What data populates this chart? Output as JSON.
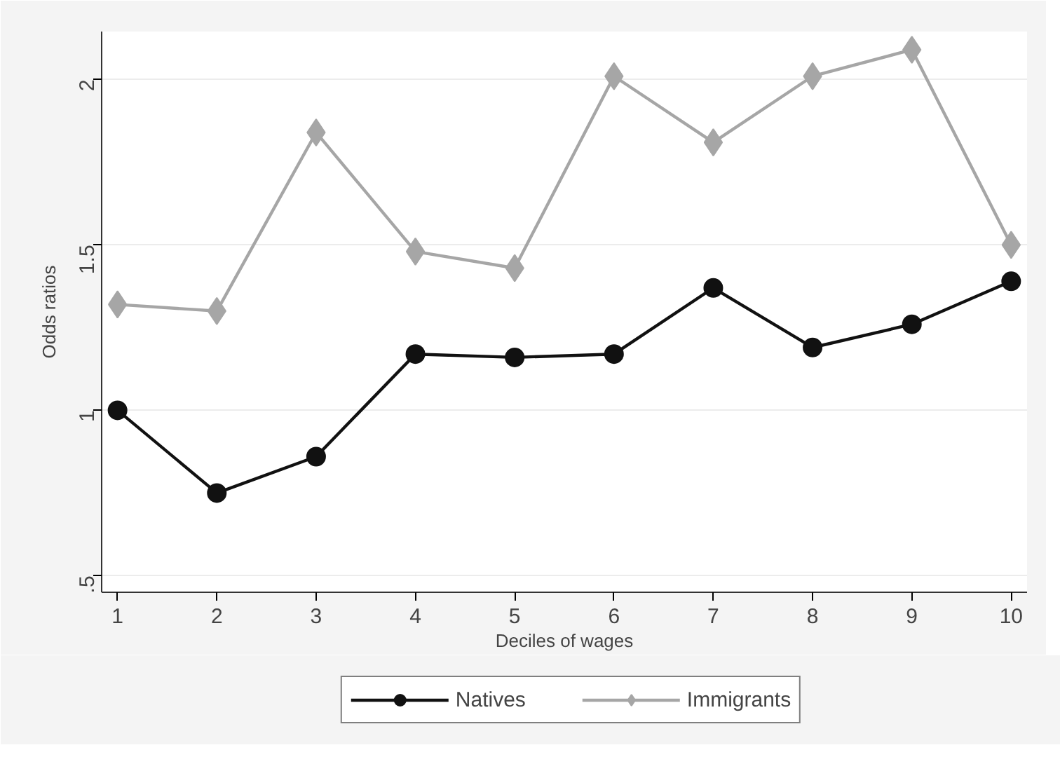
{
  "chart_data": {
    "type": "line",
    "xlabel": "Deciles of wages",
    "ylabel": "Odds ratios",
    "x": [
      1,
      2,
      3,
      4,
      5,
      6,
      7,
      8,
      9,
      10
    ],
    "series": [
      {
        "name": "Natives",
        "color": "#111111",
        "marker": "circle",
        "values": [
          1.0,
          0.75,
          0.86,
          1.17,
          1.16,
          1.17,
          1.37,
          1.19,
          1.26,
          1.39
        ]
      },
      {
        "name": "Immigrants",
        "color": "#a6a6a6",
        "marker": "diamond",
        "values": [
          1.32,
          1.3,
          1.84,
          1.48,
          1.43,
          2.01,
          1.81,
          2.01,
          2.09,
          1.5
        ]
      }
    ],
    "xlim": [
      0.84,
      10.16
    ],
    "ylim": [
      0.45,
      2.145
    ],
    "xticks": [
      1,
      2,
      3,
      4,
      5,
      6,
      7,
      8,
      9,
      10
    ],
    "yticks": [
      {
        "value": 0.5,
        "label": ".5"
      },
      1,
      1.5,
      2
    ],
    "grid": "y",
    "legend": "bottom",
    "line_style": "solid"
  }
}
